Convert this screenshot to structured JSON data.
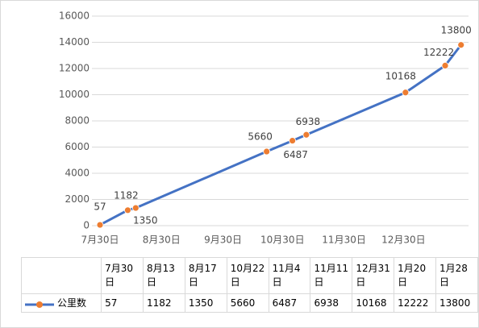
{
  "chart_data": {
    "type": "line",
    "x": [
      "7月30日",
      "8月13日",
      "8月17日",
      "10月22日",
      "11月4日",
      "11月11日",
      "12月31日",
      "1月20日",
      "1月28日"
    ],
    "series": [
      {
        "name": "公里数",
        "color": "#4472c4",
        "marker_color": "#ed7d31",
        "values": [
          57,
          1182,
          1350,
          5660,
          6487,
          6938,
          10168,
          12222,
          13800
        ]
      }
    ],
    "xticks": [
      "7月30日",
      "8月30日",
      "9月30日",
      "10月30日",
      "11月30日",
      "12月30日"
    ],
    "ylim": [
      0,
      16000
    ],
    "yticks": [
      0,
      2000,
      4000,
      6000,
      8000,
      10000,
      12000,
      14000,
      16000
    ],
    "grid": true
  }
}
